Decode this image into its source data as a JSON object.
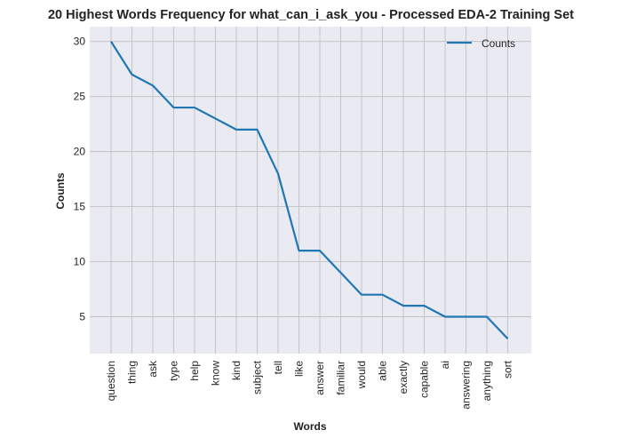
{
  "chart_data": {
    "type": "line",
    "title": "20 Highest Words Frequency for what_can_i_ask_you - Processed EDA-2 Training Set",
    "xlabel": "Words",
    "ylabel": "Counts",
    "categories": [
      "question",
      "thing",
      "ask",
      "type",
      "help",
      "know",
      "kind",
      "subject",
      "tell",
      "like",
      "answer",
      "familiar",
      "would",
      "able",
      "exactly",
      "capable",
      "ai",
      "answering",
      "anything",
      "sort"
    ],
    "series": [
      {
        "name": "Counts",
        "values": [
          30,
          27,
          26,
          24,
          24,
          23,
          22,
          22,
          18,
          11,
          11,
          9,
          7,
          7,
          6,
          6,
          5,
          5,
          5,
          3
        ]
      }
    ],
    "yticks": [
      5,
      10,
      15,
      20,
      25,
      30
    ],
    "ylim": [
      1.65,
      31.35
    ],
    "grid": true,
    "legend": "top-right",
    "colors": {
      "line": "#1f77b4",
      "background": "#eaeaf2",
      "grid": "#c0c0c0"
    }
  }
}
